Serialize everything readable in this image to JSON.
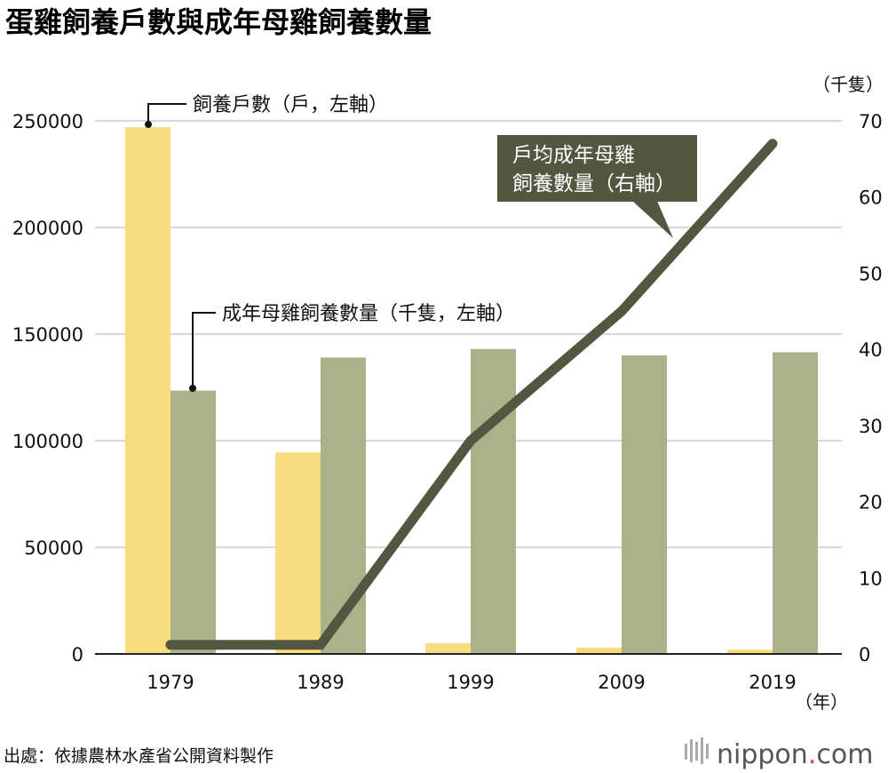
{
  "title": "蛋雞飼養戶數與成年母雞飼養數量",
  "colors": {
    "households": "#f9dc7d",
    "hens": "#a9b288",
    "line": "#535741",
    "callout_bg": "#535741",
    "grid": "#cccccc",
    "axis": "#222222",
    "brand_dot": "#e8383d"
  },
  "chart_data": {
    "type": "bar",
    "title": "蛋雞飼養戶數與成年母雞飼養數量",
    "categories": [
      "1979",
      "1989",
      "1999",
      "2009",
      "2019"
    ],
    "x_unit": "（年）",
    "left_axis": {
      "ylim": [
        0,
        250000
      ],
      "ticks": [
        "0",
        "50000",
        "100000",
        "150000",
        "200000",
        "250000"
      ]
    },
    "right_axis": {
      "unit": "（千隻）",
      "ylim": [
        0,
        70
      ],
      "ticks": [
        "0",
        "10",
        "20",
        "30",
        "40",
        "50",
        "60",
        "70"
      ]
    },
    "series": [
      {
        "name": "飼養戶數（戶，左軸）",
        "type": "bar",
        "axis": "left",
        "values": [
          247000,
          94500,
          5000,
          3000,
          2000
        ]
      },
      {
        "name": "成年母雞飼養數量（千隻，左軸）",
        "type": "bar",
        "axis": "left",
        "values": [
          123500,
          139000,
          143000,
          140000,
          141500
        ]
      },
      {
        "name": "戶均成年母雞飼養數量（右軸）",
        "type": "line",
        "axis": "right",
        "values": [
          1.2,
          1.2,
          28,
          45,
          67
        ]
      }
    ],
    "annotations": {
      "households_label": "飼養戶數（戶，左軸）",
      "hens_label": "成年母雞飼養數量（千隻，左軸）",
      "avg_label_line1": "戶均成年母雞",
      "avg_label_line2": "飼養數量（右軸）"
    },
    "grid": true
  },
  "footer": {
    "source": "出處：依據農林水產省公開資料製作",
    "brand_main": "nippon",
    "brand_dot": ".",
    "brand_tail": "com"
  }
}
